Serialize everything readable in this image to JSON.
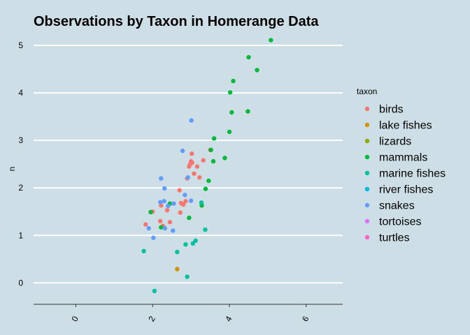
{
  "chart_data": {
    "type": "scatter",
    "title": "Observations by Taxon in Homerange Data",
    "xlabel": "",
    "ylabel": "n",
    "xlim": [
      -1.1,
      6.95
    ],
    "ylim": [
      -0.45,
      5.25
    ],
    "x_ticks": [
      0,
      2,
      4,
      6
    ],
    "x_tick_labels": [
      "0",
      "2",
      "4",
      "6"
    ],
    "y_ticks": [
      0,
      1,
      2,
      3,
      4,
      5
    ],
    "y_tick_labels": [
      "0",
      "1",
      "2",
      "3",
      "4",
      "5"
    ],
    "grid": "horizontal major lines, white",
    "legend_placement": "right",
    "legend_title": "taxon",
    "series": [
      {
        "name": "birds",
        "color": "#F8766D",
        "points": [
          [
            1.82,
            1.23
          ],
          [
            2.0,
            1.5
          ],
          [
            2.2,
            1.3
          ],
          [
            2.22,
            1.63
          ],
          [
            2.27,
            1.2
          ],
          [
            2.38,
            1.53
          ],
          [
            2.45,
            1.28
          ],
          [
            2.7,
            1.95
          ],
          [
            2.72,
            1.48
          ],
          [
            2.74,
            1.68
          ],
          [
            2.8,
            1.65
          ],
          [
            2.86,
            1.72
          ],
          [
            2.9,
            2.2
          ],
          [
            2.95,
            2.45
          ],
          [
            2.98,
            2.5
          ],
          [
            3.0,
            2.56
          ],
          [
            3.02,
            2.72
          ],
          [
            3.03,
            2.53
          ],
          [
            3.08,
            2.3
          ],
          [
            3.16,
            2.45
          ],
          [
            3.22,
            2.22
          ],
          [
            3.32,
            2.58
          ],
          [
            3.5,
            2.8
          ]
        ]
      },
      {
        "name": "lake fishes",
        "color": "#D39200",
        "points": [
          [
            2.64,
            0.29
          ]
        ]
      },
      {
        "name": "lizards",
        "color": "#93AA00",
        "points": []
      },
      {
        "name": "mammals",
        "color": "#00BA38",
        "points": [
          [
            1.95,
            1.49
          ],
          [
            2.22,
            1.17
          ],
          [
            2.45,
            1.67
          ],
          [
            2.95,
            1.37
          ],
          [
            3.28,
            1.63
          ],
          [
            3.38,
            1.98
          ],
          [
            3.46,
            2.15
          ],
          [
            3.52,
            2.8
          ],
          [
            3.58,
            2.56
          ],
          [
            3.6,
            3.04
          ],
          [
            3.88,
            2.63
          ],
          [
            4.0,
            3.18
          ],
          [
            4.02,
            4.01
          ],
          [
            4.06,
            3.59
          ],
          [
            4.1,
            4.25
          ],
          [
            4.48,
            3.61
          ],
          [
            4.5,
            4.75
          ],
          [
            4.72,
            4.48
          ],
          [
            5.08,
            5.11
          ]
        ]
      },
      {
        "name": "marine fishes",
        "color": "#00C19F",
        "points": [
          [
            1.77,
            0.67
          ],
          [
            2.05,
            -0.17
          ],
          [
            2.64,
            0.65
          ],
          [
            2.86,
            0.81
          ],
          [
            2.9,
            0.13
          ],
          [
            3.05,
            0.83
          ],
          [
            3.12,
            0.89
          ],
          [
            3.27,
            1.69
          ],
          [
            3.37,
            1.12
          ]
        ]
      },
      {
        "name": "river fishes",
        "color": "#00B9E3",
        "points": []
      },
      {
        "name": "snakes",
        "color": "#619CFF",
        "points": [
          [
            1.9,
            1.15
          ],
          [
            2.02,
            0.95
          ],
          [
            2.2,
            1.7
          ],
          [
            2.22,
            2.2
          ],
          [
            2.3,
            1.72
          ],
          [
            2.31,
            1.99
          ],
          [
            2.32,
            1.15
          ],
          [
            2.4,
            1.62
          ],
          [
            2.53,
            1.1
          ],
          [
            2.55,
            1.67
          ],
          [
            2.78,
            2.78
          ],
          [
            2.84,
            1.85
          ],
          [
            2.92,
            2.22
          ],
          [
            3.0,
            1.73
          ],
          [
            3.01,
            3.42
          ]
        ]
      },
      {
        "name": "tortoises",
        "color": "#DB72FB",
        "points": []
      },
      {
        "name": "turtles",
        "color": "#FF61C3",
        "points": []
      }
    ]
  }
}
